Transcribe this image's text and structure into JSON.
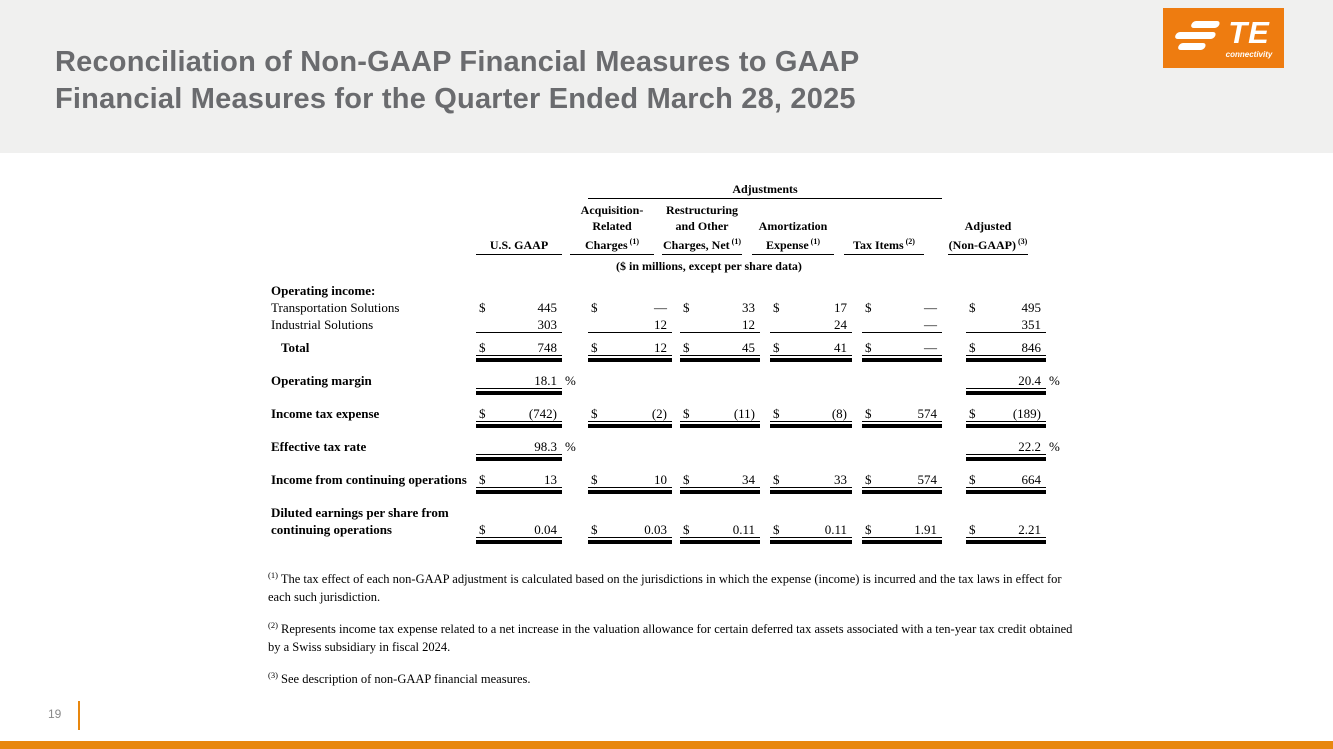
{
  "slide": {
    "title_line1": "Reconciliation of Non-GAAP Financial Measures to GAAP",
    "title_line2": "Financial Measures for the Quarter Ended March 28, 2025",
    "page_number": "19"
  },
  "logo": {
    "brand": "TE",
    "tagline": "connectivity"
  },
  "colors": {
    "brand_orange": "#EE7C10",
    "footer_orange": "#E8870E",
    "band_gray": "#F0F0EF",
    "title_gray": "#6A6B6E"
  },
  "chart_data": {
    "type": "table",
    "group_header": "Adjustments",
    "unit_note": "($ in millions, except per share data)",
    "columns": [
      {
        "lines": [
          "U.S. GAAP"
        ],
        "sup": ""
      },
      {
        "lines": [
          "Acquisition-",
          "Related",
          "Charges"
        ],
        "sup": "(1)"
      },
      {
        "lines": [
          "Restructuring",
          "and Other",
          "Charges, Net"
        ],
        "sup": "(1)"
      },
      {
        "lines": [
          "Amortization",
          "Expense"
        ],
        "sup": "(1)"
      },
      {
        "lines": [
          "Tax Items"
        ],
        "sup": "(2)"
      },
      {
        "lines": [
          "Adjusted",
          "(Non-GAAP)"
        ],
        "sup": "(3)"
      }
    ],
    "rows": [
      {
        "label": "Operating income:",
        "bold": true,
        "indent": false,
        "section_gap": false,
        "two_line": false,
        "rule": "none",
        "cells": [
          null,
          null,
          null,
          null,
          null,
          null
        ]
      },
      {
        "label": "Transportation Solutions",
        "bold": false,
        "indent": false,
        "section_gap": false,
        "two_line": false,
        "rule": "none",
        "cells": [
          {
            "dollar": true,
            "value": "445"
          },
          {
            "dollar": true,
            "value": "—"
          },
          {
            "dollar": true,
            "value": "33"
          },
          {
            "dollar": true,
            "value": "17"
          },
          {
            "dollar": true,
            "value": "—"
          },
          {
            "dollar": true,
            "value": "495"
          }
        ]
      },
      {
        "label": "Industrial Solutions",
        "bold": false,
        "indent": false,
        "section_gap": false,
        "two_line": false,
        "rule": "thin",
        "cells": [
          {
            "dollar": false,
            "value": "303"
          },
          {
            "dollar": false,
            "value": "12"
          },
          {
            "dollar": false,
            "value": "12"
          },
          {
            "dollar": false,
            "value": "24"
          },
          {
            "dollar": false,
            "value": "—"
          },
          {
            "dollar": false,
            "value": "351"
          }
        ]
      },
      {
        "label": "Total",
        "bold": true,
        "indent": true,
        "section_gap": false,
        "two_line": false,
        "rule": "double",
        "cells": [
          {
            "dollar": true,
            "value": "748"
          },
          {
            "dollar": true,
            "value": "12"
          },
          {
            "dollar": true,
            "value": "45"
          },
          {
            "dollar": true,
            "value": "41"
          },
          {
            "dollar": true,
            "value": "—"
          },
          {
            "dollar": true,
            "value": "846"
          }
        ]
      },
      {
        "label": "Operating margin",
        "bold": true,
        "indent": false,
        "section_gap": true,
        "two_line": false,
        "rule": "double",
        "cells": [
          {
            "dollar": false,
            "value": "18.1",
            "pct": true
          },
          null,
          null,
          null,
          null,
          {
            "dollar": false,
            "value": "20.4",
            "pct": true
          }
        ]
      },
      {
        "label": "Income tax expense",
        "bold": true,
        "indent": false,
        "section_gap": true,
        "two_line": false,
        "rule": "double",
        "cells": [
          {
            "dollar": true,
            "value": "(742)"
          },
          {
            "dollar": true,
            "value": "(2)"
          },
          {
            "dollar": true,
            "value": "(11)"
          },
          {
            "dollar": true,
            "value": "(8)"
          },
          {
            "dollar": true,
            "value": "574"
          },
          {
            "dollar": true,
            "value": "(189)"
          }
        ]
      },
      {
        "label": "Effective tax rate",
        "bold": true,
        "indent": false,
        "section_gap": true,
        "two_line": false,
        "rule": "double",
        "cells": [
          {
            "dollar": false,
            "value": "98.3",
            "pct": true
          },
          null,
          null,
          null,
          null,
          {
            "dollar": false,
            "value": "22.2",
            "pct": true
          }
        ]
      },
      {
        "label": "Income from continuing operations",
        "bold": true,
        "indent": false,
        "section_gap": true,
        "two_line": false,
        "rule": "double",
        "cells": [
          {
            "dollar": true,
            "value": "13"
          },
          {
            "dollar": true,
            "value": "10"
          },
          {
            "dollar": true,
            "value": "34"
          },
          {
            "dollar": true,
            "value": "33"
          },
          {
            "dollar": true,
            "value": "574"
          },
          {
            "dollar": true,
            "value": "664"
          }
        ]
      },
      {
        "label": "Diluted earnings per share from\ncontinuing operations",
        "bold": true,
        "indent": false,
        "section_gap": true,
        "two_line": true,
        "rule": "double",
        "cells": [
          {
            "dollar": true,
            "value": "0.04"
          },
          {
            "dollar": true,
            "value": "0.03"
          },
          {
            "dollar": true,
            "value": "0.11"
          },
          {
            "dollar": true,
            "value": "0.11"
          },
          {
            "dollar": true,
            "value": "1.91"
          },
          {
            "dollar": true,
            "value": "2.21"
          }
        ]
      }
    ]
  },
  "footnotes": [
    {
      "marker": "(1)",
      "text": "The tax effect of each non-GAAP adjustment is calculated based on the jurisdictions in which the expense (income) is incurred and the tax laws in effect for each such jurisdiction."
    },
    {
      "marker": "(2)",
      "text": "Represents income tax expense related to a net increase in the valuation allowance for certain deferred tax assets associated with a ten-year tax credit obtained by a Swiss subsidiary in fiscal 2024."
    },
    {
      "marker": "(3)",
      "text": "See description of non-GAAP financial measures."
    }
  ]
}
